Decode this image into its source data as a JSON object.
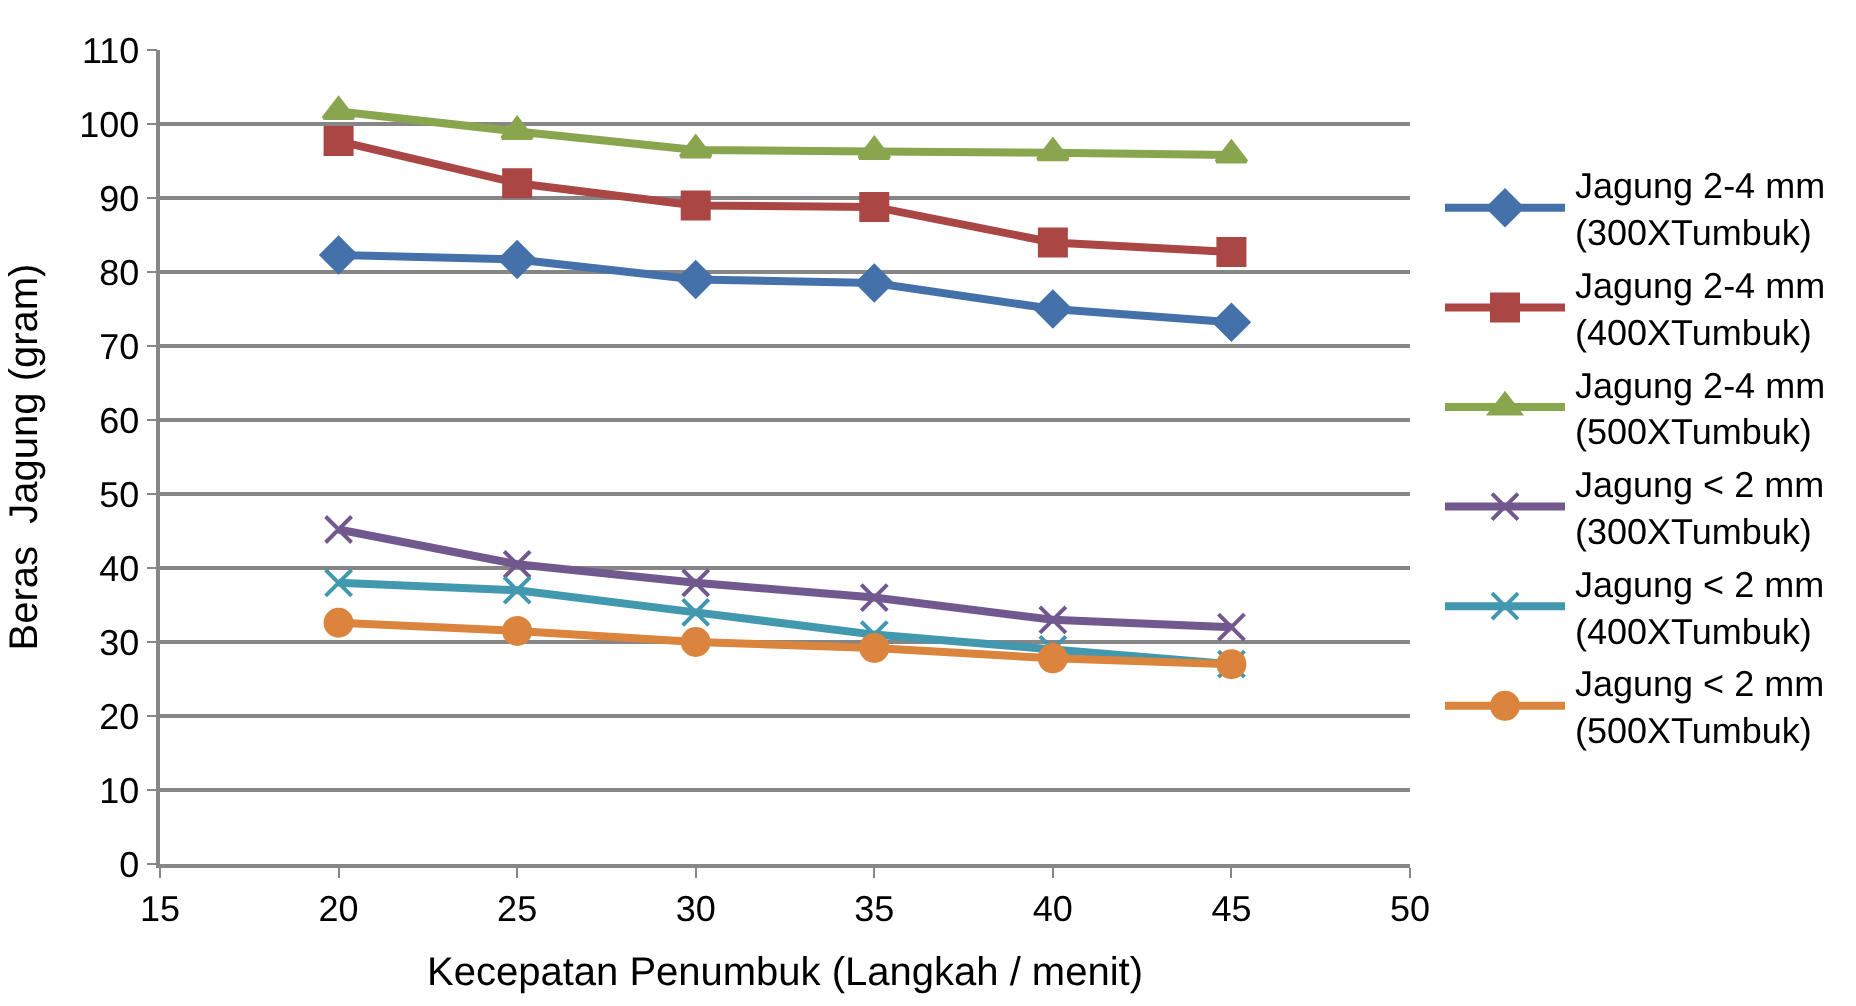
{
  "chart_data": {
    "type": "line",
    "xlabel": "Kecepatan Penumbuk (Langkah / menit)",
    "ylabel": "Beras  Jagung (gram)",
    "x": [
      20,
      25,
      30,
      35,
      40,
      45
    ],
    "xlim": [
      15,
      50
    ],
    "xticks": [
      15,
      20,
      25,
      30,
      35,
      40,
      45,
      50
    ],
    "ylim": [
      0,
      110
    ],
    "yticks": [
      0,
      10,
      20,
      30,
      40,
      50,
      60,
      70,
      80,
      90,
      100,
      110
    ],
    "grid": "y",
    "legend": "right",
    "line_style": "solid",
    "series": [
      {
        "name": "Jagung 2-4 mm (300XTumbuk)",
        "color": "#4471aa",
        "marker": "diamond",
        "values": [
          82.3,
          81.7,
          79,
          78.5,
          75,
          73.2
        ]
      },
      {
        "name": "Jagung 2-4 mm (400XTumbuk)",
        "color": "#aa4643",
        "marker": "square",
        "values": [
          97.7,
          92,
          89,
          88.8,
          84,
          82.7
        ]
      },
      {
        "name": "Jagung 2-4 mm (500XTumbuk)",
        "color": "#89a54e",
        "marker": "triangle",
        "values": [
          101.7,
          99,
          96.5,
          96.3,
          96.1,
          95.8
        ]
      },
      {
        "name": "Jagung < 2 mm (300XTumbuk)",
        "color": "#71588f",
        "marker": "cross",
        "values": [
          45.2,
          40.5,
          38,
          36,
          33,
          32
        ]
      },
      {
        "name": "Jagung < 2 mm (400XTumbuk)",
        "color": "#4198af",
        "marker": "cross",
        "values": [
          38,
          37,
          34,
          31,
          29,
          27
        ]
      },
      {
        "name": "Jagung < 2 mm (500XTumbuk)",
        "color": "#db843d",
        "marker": "circle",
        "values": [
          32.6,
          31.5,
          30,
          29.2,
          27.8,
          27
        ]
      }
    ]
  }
}
